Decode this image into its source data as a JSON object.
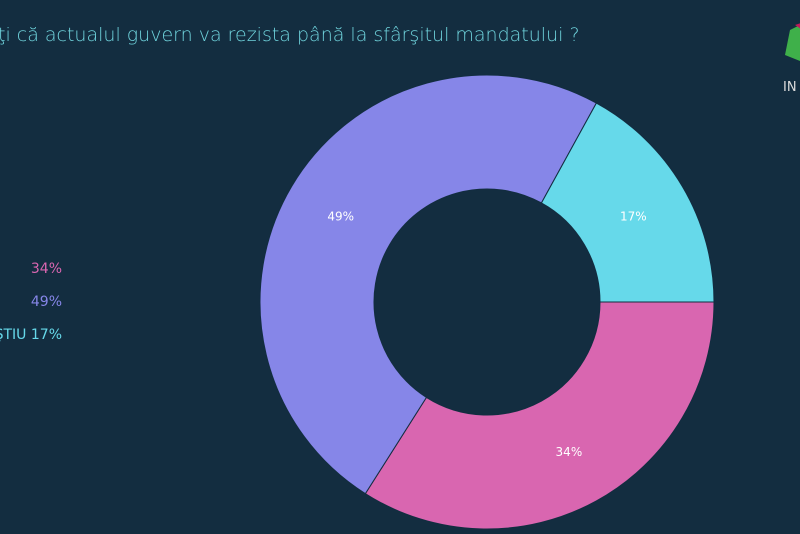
{
  "chart_data": {
    "type": "pie",
    "donut": true,
    "title": "ţi că actualul guvern va rezista până la sfârşitul mandatului ?",
    "slices": [
      {
        "legend": "34%",
        "value": 34,
        "label": "34%",
        "color": "#d966b0"
      },
      {
        "legend": "49%",
        "value": 49,
        "label": "49%",
        "color": "#8686e8"
      },
      {
        "legend": "ŞTIU 17%",
        "value": 17,
        "label": "17%",
        "color": "#66d9ea"
      }
    ],
    "legend_placement": "left"
  },
  "logo": {
    "text": "IN"
  },
  "colors": {
    "background": "#132d40",
    "title": "#6fd3dc"
  }
}
